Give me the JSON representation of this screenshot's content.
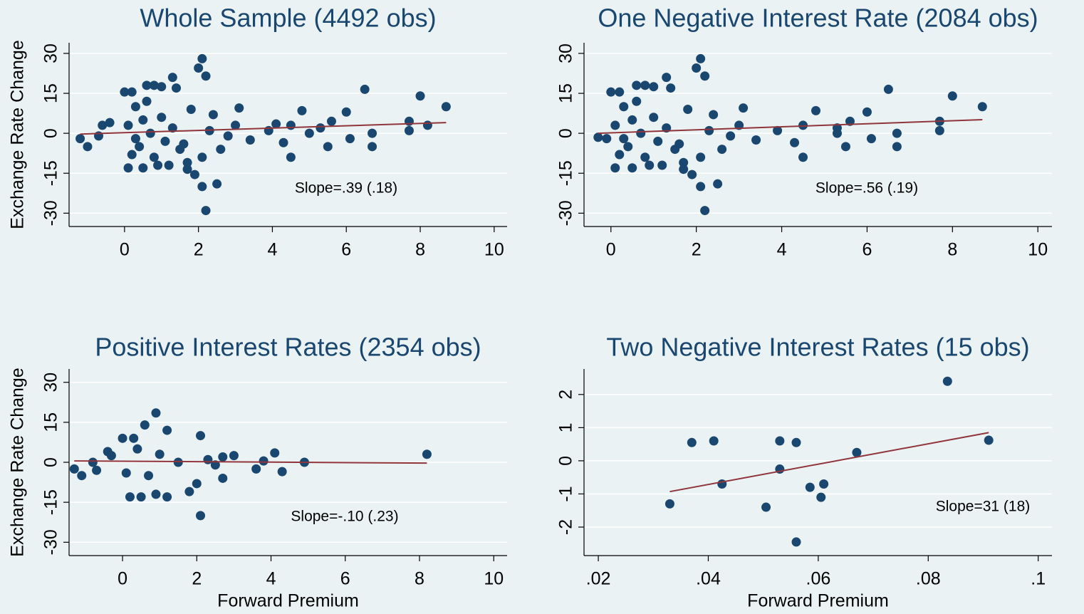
{
  "chart_data": [
    {
      "type": "scatter",
      "title": "Whole Sample (4492 obs)",
      "y_label": "Exchange Rate Change",
      "color": "#1a476f",
      "fit_color": "#90353b",
      "xlim": [
        -1.5,
        10.35
      ],
      "ylim": [
        -35,
        34
      ],
      "xticks": [
        0,
        2,
        4,
        6,
        8,
        10
      ],
      "yticks": [
        -30,
        -15,
        0,
        15,
        30
      ],
      "grid": true,
      "annotation": "Slope=.39 (.18)",
      "x": [
        2.1,
        2.0,
        2.2,
        1.3,
        6.5,
        8.0,
        8.7,
        3.1,
        4.8,
        6.0,
        5.6,
        7.7,
        8.2,
        7.7,
        6.7,
        5.3,
        5.0,
        4.5,
        4.3,
        4.5,
        5.5,
        6.1,
        6.7,
        2.1,
        2.2,
        2.5,
        1.9,
        1.7,
        2.1,
        2.6,
        3.4,
        3.9,
        4.1,
        -1.2,
        -1.0,
        -0.7,
        -0.6,
        -0.4,
        0.0,
        0.2,
        0.6,
        0.8,
        1.0,
        1.4,
        0.1,
        0.5,
        0.9,
        1.2,
        1.7,
        1.5,
        2.8,
        3.0,
        2.4,
        1.8,
        0.3,
        0.5,
        0.7,
        0.4,
        0.2,
        1.0,
        1.1,
        0.6,
        0.8,
        1.3,
        1.6,
        2.3,
        0.1,
        0.3
      ],
      "values": [
        28,
        24.5,
        21.5,
        21,
        16.5,
        14,
        10,
        9.5,
        8.5,
        8,
        4.5,
        4.5,
        3,
        1,
        0,
        2,
        0,
        3,
        -3.5,
        -9,
        -5,
        -2,
        -5,
        -20,
        -29,
        -19,
        -15.5,
        -13.5,
        -9,
        -6,
        -2.5,
        1,
        3.5,
        -2,
        -5,
        -1,
        3,
        4,
        15.5,
        15.5,
        18,
        18,
        17.5,
        17,
        -13,
        -13,
        -12,
        -12,
        -11,
        -6,
        -1,
        3,
        7,
        9,
        10,
        5,
        0,
        -5,
        -8,
        6,
        -3,
        12,
        -9,
        2,
        -4,
        1,
        3,
        -2
      ],
      "fit_x": [
        -1.2,
        8.7
      ],
      "fit_values": [
        -0.3,
        4.0
      ]
    },
    {
      "type": "scatter",
      "title": "One Negative Interest Rate (2084 obs)",
      "color": "#1a476f",
      "fit_color": "#90353b",
      "xlim": [
        -0.63,
        10.33
      ],
      "ylim": [
        -35,
        34
      ],
      "xticks": [
        0,
        2,
        4,
        6,
        8,
        10
      ],
      "yticks": [
        -30,
        -15,
        0,
        15,
        30
      ],
      "grid": true,
      "annotation": "Slope=.56 (.19)",
      "x": [
        2.1,
        2.0,
        2.2,
        1.3,
        6.5,
        8.0,
        8.7,
        3.1,
        4.8,
        6.0,
        5.6,
        7.7,
        7.7,
        6.7,
        5.3,
        5.3,
        4.5,
        4.3,
        4.5,
        5.5,
        6.1,
        6.7,
        2.1,
        2.2,
        2.5,
        1.9,
        1.7,
        2.1,
        2.6,
        3.4,
        3.9,
        -0.3,
        -0.1,
        0.0,
        0.2,
        0.6,
        0.8,
        1.0,
        1.4,
        0.1,
        0.5,
        0.9,
        1.2,
        1.7,
        1.5,
        2.8,
        3.0,
        2.4,
        1.8,
        0.3,
        0.5,
        0.7,
        0.4,
        0.2,
        1.0,
        1.1,
        0.6,
        0.8,
        1.3,
        1.6,
        2.3,
        0.1,
        0.3
      ],
      "values": [
        28,
        24.5,
        21.5,
        21,
        16.5,
        14,
        10,
        9.5,
        8.5,
        8,
        4.5,
        4.5,
        1,
        0,
        2,
        0,
        3,
        -3.5,
        -9,
        -5,
        -2,
        -5,
        -20,
        -29,
        -19,
        -15.5,
        -13.5,
        -9,
        -6,
        -2.5,
        1,
        -1.5,
        -2,
        15.5,
        15.5,
        18,
        18,
        17.5,
        17,
        -13,
        -13,
        -12,
        -12,
        -11,
        -6,
        -1,
        3,
        7,
        9,
        10,
        5,
        0,
        -5,
        -8,
        6,
        -3,
        12,
        -9,
        2,
        -4,
        1,
        3,
        -2
      ],
      "fit_x": [
        -0.3,
        8.7
      ],
      "fit_values": [
        0,
        5.1
      ]
    },
    {
      "type": "scatter",
      "title": "Positive Interest Rates (2354 obs)",
      "y_label": "Exchange Rate Change",
      "x_label": "Forward Premium",
      "color": "#1a476f",
      "fit_color": "#90353b",
      "xlim": [
        -1.44,
        10.36
      ],
      "ylim": [
        -35,
        35
      ],
      "xticks": [
        0,
        2,
        4,
        6,
        8,
        10
      ],
      "yticks": [
        -30,
        -15,
        0,
        15,
        30
      ],
      "grid": true,
      "annotation": "Slope=-.10 (.23)",
      "x": [
        0.9,
        8.2,
        4.9,
        4.3,
        4.1,
        3.6,
        3.0,
        2.7,
        2.7,
        2.1,
        2.1,
        1.8,
        2.0,
        1.2,
        0.6,
        -1.3,
        -1.1,
        -0.8,
        -0.7,
        -0.4,
        -0.3,
        0.0,
        0.3,
        0.5,
        0.2,
        1.2,
        0.9,
        0.4,
        0.7,
        1.0,
        0.1,
        1.5,
        3.8,
        2.3,
        2.5
      ],
      "values": [
        18.5,
        3,
        0,
        -3.5,
        3.5,
        -2.5,
        2.5,
        2,
        -6,
        10,
        -20,
        -11,
        -8,
        12,
        14,
        -2.5,
        -5,
        0,
        -3,
        4,
        2.5,
        9,
        9,
        -13,
        -13,
        -13,
        -12,
        5,
        -5,
        3,
        -4,
        0,
        0.5,
        1,
        -1
      ],
      "fit_x": [
        -1.3,
        8.2
      ],
      "fit_values": [
        0.5,
        -0.3
      ]
    },
    {
      "type": "scatter",
      "title": "Two Negative Interest Rates (15 obs)",
      "x_label": "Forward Premium",
      "color": "#1a476f",
      "fit_color": "#90353b",
      "xlim": [
        0.0174,
        0.1025
      ],
      "ylim": [
        -2.86,
        2.77
      ],
      "xticks": [
        {
          "value": 0.02,
          "label": ".02"
        },
        {
          "value": 0.04,
          "label": ".04"
        },
        {
          "value": 0.06,
          "label": ".06"
        },
        {
          "value": 0.08,
          "label": ".08"
        },
        {
          "value": 0.1,
          "label": ".1"
        }
      ],
      "yticks": [
        -2,
        -1,
        0,
        1,
        2
      ],
      "grid": true,
      "annotation": "Slope=31 (18)",
      "x": [
        0.033,
        0.037,
        0.041,
        0.0425,
        0.0505,
        0.053,
        0.053,
        0.056,
        0.056,
        0.0585,
        0.0605,
        0.061,
        0.067,
        0.0835,
        0.091
      ],
      "values": [
        -1.3,
        0.55,
        0.6,
        -0.7,
        -1.4,
        0.6,
        -0.25,
        0.55,
        -2.45,
        -0.8,
        -1.1,
        -0.7,
        0.25,
        2.4,
        0.62
      ],
      "fit_x": [
        0.033,
        0.091
      ],
      "fit_values": [
        -0.93,
        0.85
      ]
    }
  ]
}
